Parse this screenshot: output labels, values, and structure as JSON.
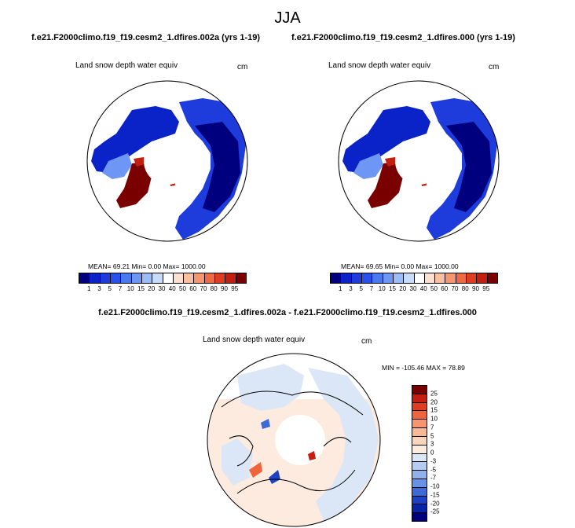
{
  "main_title": "JJA",
  "panels": [
    {
      "case_title": "f.e21.F2000climo.f19_f19.cesm2_1.dfires.002a (yrs 1-19)",
      "variable": "Land snow depth water equiv",
      "units": "cm",
      "stats": "MEAN= 69.21  Min=  0.00  Max= 1000.00"
    },
    {
      "case_title": "f.e21.F2000climo.f19_f19.cesm2_1.dfires.000 (yrs 1-19)",
      "variable": "Land snow depth water equiv",
      "units": "cm",
      "stats": "MEAN= 69.65  Min=  0.00  Max= 1000.00"
    }
  ],
  "difference": {
    "title": "f.e21.F2000climo.f19_f19.cesm2_1.dfires.002a - f.e21.F2000climo.f19_f19.cesm2_1.dfires.000",
    "variable": "Land snow depth water equiv",
    "units": "cm",
    "stats": "MIN = -105.46 MAX =  78.89"
  },
  "colorbar_top": {
    "labels": [
      "1",
      "3",
      "5",
      "7",
      "10",
      "15",
      "20",
      "30",
      "40",
      "50",
      "60",
      "70",
      "80",
      "90",
      "95"
    ],
    "colors": [
      "#00007f",
      "#0a23c8",
      "#1e3cdc",
      "#2850eb",
      "#4a78f0",
      "#6e96f5",
      "#9bbcf7",
      "#c8dcfa",
      "#ffffff",
      "#fde0d0",
      "#f9c0a0",
      "#f59670",
      "#ee6a45",
      "#e03c20",
      "#c41e10",
      "#7a0000"
    ]
  },
  "colorbar_diff": {
    "labels": [
      "25",
      "20",
      "15",
      "10",
      "7",
      "5",
      "3",
      "0",
      "-3",
      "-5",
      "-7",
      "-10",
      "-15",
      "-20",
      "-25"
    ],
    "colors": [
      "#7a0000",
      "#c41e10",
      "#e03c20",
      "#f0643c",
      "#f59670",
      "#f8b896",
      "#fbd4bc",
      "#fdebdf",
      "#dbe7f7",
      "#b6cdf2",
      "#8fb2ec",
      "#6a92e4",
      "#3e6ad8",
      "#1e40c4",
      "#0a24a8",
      "#00007f"
    ]
  }
}
